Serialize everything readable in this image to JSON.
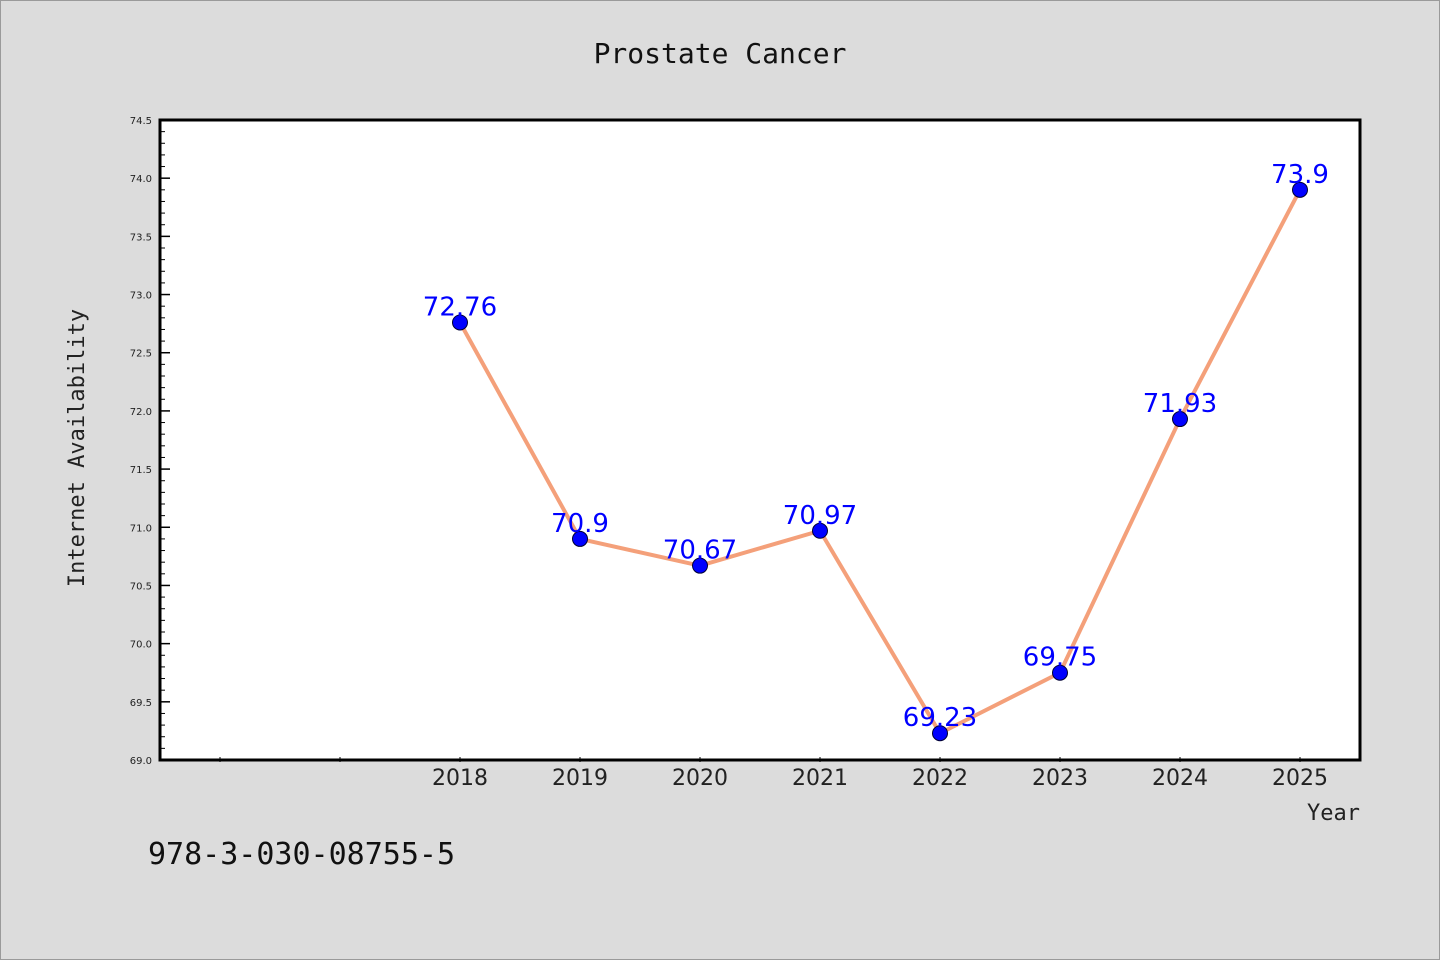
{
  "chart_data": {
    "type": "line",
    "title": "Prostate Cancer",
    "xlabel": "Year",
    "ylabel": "Internet Availability",
    "x": [
      "2018",
      "2019",
      "2020",
      "2021",
      "2022",
      "2023",
      "2024",
      "2025"
    ],
    "values": [
      72.76,
      70.9,
      70.67,
      70.97,
      69.23,
      69.75,
      71.93,
      73.9
    ],
    "data_labels": [
      "72.76",
      "70.9",
      "70.67",
      "70.97",
      "69.23",
      "69.75",
      "71.93",
      "73.9"
    ],
    "ylim": [
      69.0,
      74.5
    ],
    "yticks": [
      "69.0",
      "69.5",
      "70.0",
      "70.5",
      "71.0",
      "71.5",
      "72.0",
      "72.5",
      "73.0",
      "73.5",
      "74.0",
      "74.5"
    ],
    "grid": false,
    "legend": "none",
    "colors": {
      "line": "#f4a07a",
      "marker": "#0000ff",
      "label": "#0000ff",
      "background": "#dcdcdc",
      "plot_background": "#ffffff"
    }
  },
  "footer_text": "978-3-030-08755-5"
}
